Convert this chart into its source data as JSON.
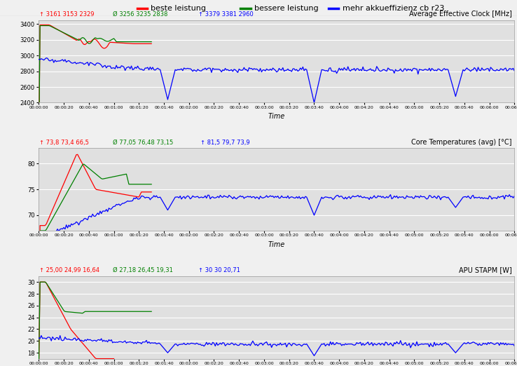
{
  "title_legend": [
    "beste leistung",
    "bessere leistung",
    "mehr akkueffizienz cb r23"
  ],
  "legend_colors": [
    "#ff0000",
    "#008000",
    "#0000ff"
  ],
  "panel1_title": "Average Effective Clock [MHz]",
  "panel1_stats_red": "↑ 3161 3153 2329",
  "panel1_stats_green": "Ø 3256 3235 2838",
  "panel1_stats_blue": "↑ 3379 3381 2960",
  "panel1_ylim": [
    2400,
    3450
  ],
  "panel1_yticks": [
    2400,
    2600,
    2800,
    3000,
    3200,
    3400
  ],
  "panel2_title": "Core Temperatures (avg) [°C]",
  "panel2_stats_red": "↑ 73,8 73,4 66,5",
  "panel2_stats_green": "Ø 77,05 76,48 73,15",
  "panel2_stats_blue": "↑ 81,5 79,7 73,9",
  "panel2_ylim": [
    67,
    83
  ],
  "panel2_yticks": [
    70,
    75,
    80
  ],
  "panel3_title": "APU STAPM [W]",
  "panel3_stats_red": "↑ 25,00 24,99 16,64",
  "panel3_stats_green": "Ø 27,18 26,45 19,31",
  "panel3_stats_blue": "↑ 30 30 20,71",
  "panel3_ylim": [
    17,
    31
  ],
  "panel3_yticks": [
    18,
    20,
    22,
    24,
    26,
    28,
    30
  ],
  "time_total_seconds": 380,
  "xlabel": "Time",
  "fig_bg": "#f0f0f0",
  "plot_bg": "#e0e0e0",
  "legend_bg": "#ffffff",
  "red_color": "#ff0000",
  "green_color": "#008000",
  "blue_color": "#0000ff",
  "line_width": 0.9
}
